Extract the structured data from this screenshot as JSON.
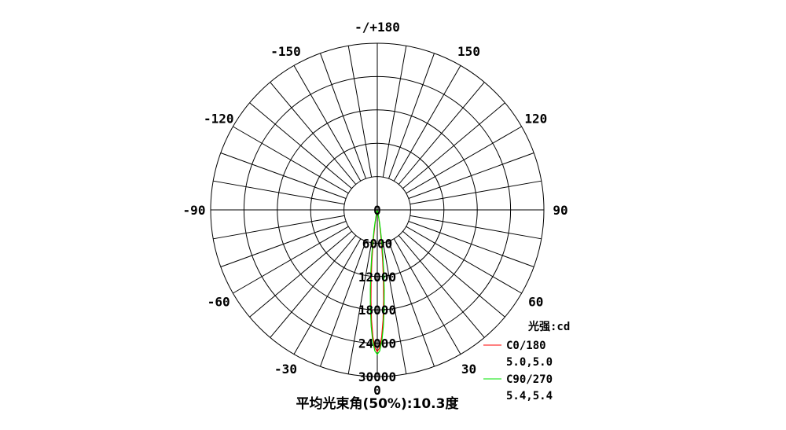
{
  "chart_data": {
    "type": "polar-line",
    "angle_labels": [
      "-/+180",
      "-150",
      "150",
      "-120",
      "120",
      "-90",
      "90",
      "-60",
      "60",
      "-30",
      "30",
      "0"
    ],
    "angle_values": [
      180,
      -150,
      150,
      -120,
      120,
      -90,
      90,
      -60,
      60,
      -30,
      30,
      0
    ],
    "radial_ticks": [
      0,
      6000,
      12000,
      18000,
      24000,
      30000
    ],
    "radial_range": [
      0,
      30000
    ],
    "grid": true,
    "unit_label": "光强:cd",
    "footer": "平均光束角(50%):10.3度",
    "bottom_zero_label": "0",
    "series": [
      {
        "name": "C0/180",
        "half_angles": "5.0,5.0",
        "color": "#ff0000",
        "angles": [
          -15,
          -12,
          -10,
          -9,
          -8,
          -7,
          -6,
          -5,
          -4,
          -3,
          -2,
          -1,
          0,
          1,
          2,
          3,
          4,
          5,
          6,
          7,
          8,
          9,
          10,
          12,
          15
        ],
        "values": [
          50,
          470,
          1590,
          2700,
          4320,
          6550,
          9400,
          12750,
          16360,
          19870,
          22820,
          24800,
          25500,
          24800,
          22820,
          19870,
          16360,
          12750,
          9400,
          6550,
          4320,
          2700,
          1590,
          470,
          50
        ]
      },
      {
        "name": "C90/270",
        "half_angles": "5.4,5.4",
        "color": "#00e600",
        "angles": [
          -15,
          -12,
          -10,
          -9,
          -8,
          -7,
          -6,
          -5,
          -4,
          -3,
          -2,
          -1,
          0,
          1,
          2,
          3,
          4,
          5,
          6,
          7,
          8,
          9,
          10,
          12,
          15
        ],
        "values": [
          120,
          850,
          2420,
          3790,
          5680,
          8110,
          11050,
          14350,
          17770,
          20990,
          23640,
          25390,
          26000,
          25390,
          23640,
          20990,
          17770,
          14350,
          11050,
          8110,
          5680,
          3790,
          2420,
          850,
          120
        ]
      }
    ]
  }
}
